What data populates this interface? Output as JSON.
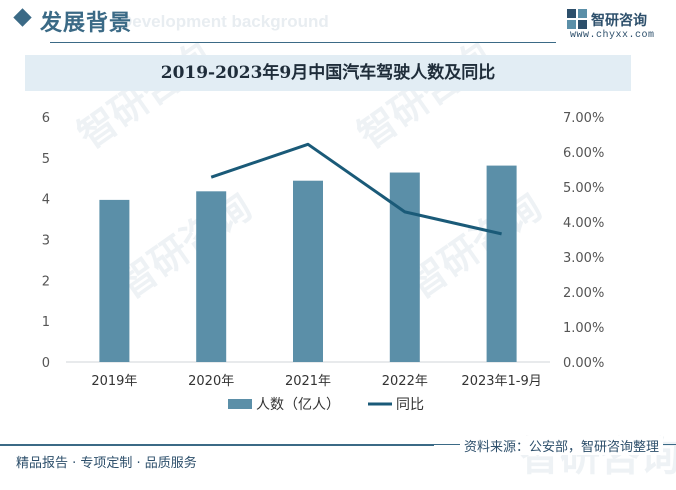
{
  "header": {
    "title": "发展背景",
    "subtitle_watermark": "Development background"
  },
  "logo": {
    "name": "智研咨询",
    "url": "www.chyxx.com"
  },
  "chart_data": {
    "type": "bar",
    "title": "2019-2023年9月中国汽车驾驶人数及同比",
    "categories": [
      "2019年",
      "2020年",
      "2021年",
      "2022年",
      "2023年1-9月"
    ],
    "series": [
      {
        "name": "人数（亿人）",
        "kind": "bar",
        "axis": "left",
        "color": "#5b8fa8",
        "values": [
          3.97,
          4.18,
          4.44,
          4.64,
          4.81
        ]
      },
      {
        "name": "同比",
        "kind": "line",
        "axis": "right",
        "color": "#1a5a78",
        "values": [
          null,
          5.28,
          6.22,
          4.29,
          3.66
        ]
      }
    ],
    "y_left": {
      "range": [
        0,
        6
      ],
      "ticks": [
        "0",
        "1",
        "2",
        "3",
        "4",
        "5",
        "6"
      ]
    },
    "y_right": {
      "range": [
        0,
        7
      ],
      "ticks": [
        "0.00%",
        "1.00%",
        "2.00%",
        "3.00%",
        "4.00%",
        "5.00%",
        "6.00%",
        "7.00%"
      ]
    },
    "grid": false,
    "legend": "bottom"
  },
  "footer": {
    "left_text": "精品报告 · 专项定制 · 品质服务",
    "source": "资料来源：公安部，智研咨询整理"
  }
}
